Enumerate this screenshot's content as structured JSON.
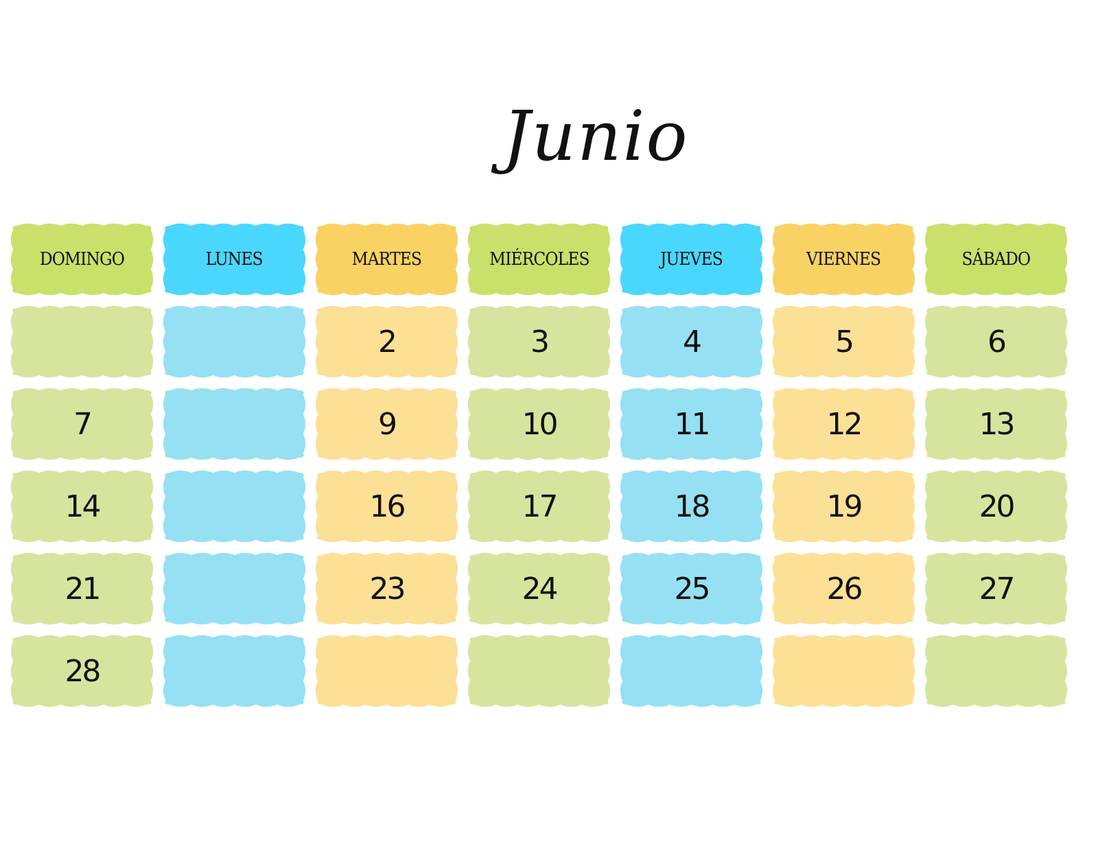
{
  "title": "Junio",
  "colors": {
    "green": {
      "header": "#c9e06a",
      "cell": "#d7e49e"
    },
    "blue": {
      "header": "#4ad7fd",
      "cell": "#96e0f4"
    },
    "orange": {
      "header": "#f9d264",
      "cell": "#fce096"
    }
  },
  "column_colors": [
    "green",
    "blue",
    "orange",
    "green",
    "blue",
    "orange",
    "green"
  ],
  "weekdays": [
    "DOMINGO",
    "LUNES",
    "MARTES",
    "MIÉRCOLES",
    "JUEVES",
    "VIERNES",
    "SÁBADO"
  ],
  "weeks": [
    [
      "",
      "",
      "2",
      "3",
      "4",
      "5",
      "6"
    ],
    [
      "7",
      "",
      "9",
      "10",
      "11",
      "12",
      "13"
    ],
    [
      "14",
      "",
      "16",
      "17",
      "18",
      "19",
      "20"
    ],
    [
      "21",
      "",
      "23",
      "24",
      "25",
      "26",
      "27"
    ],
    [
      "28",
      "",
      "",
      "",
      "",
      "",
      ""
    ]
  ]
}
